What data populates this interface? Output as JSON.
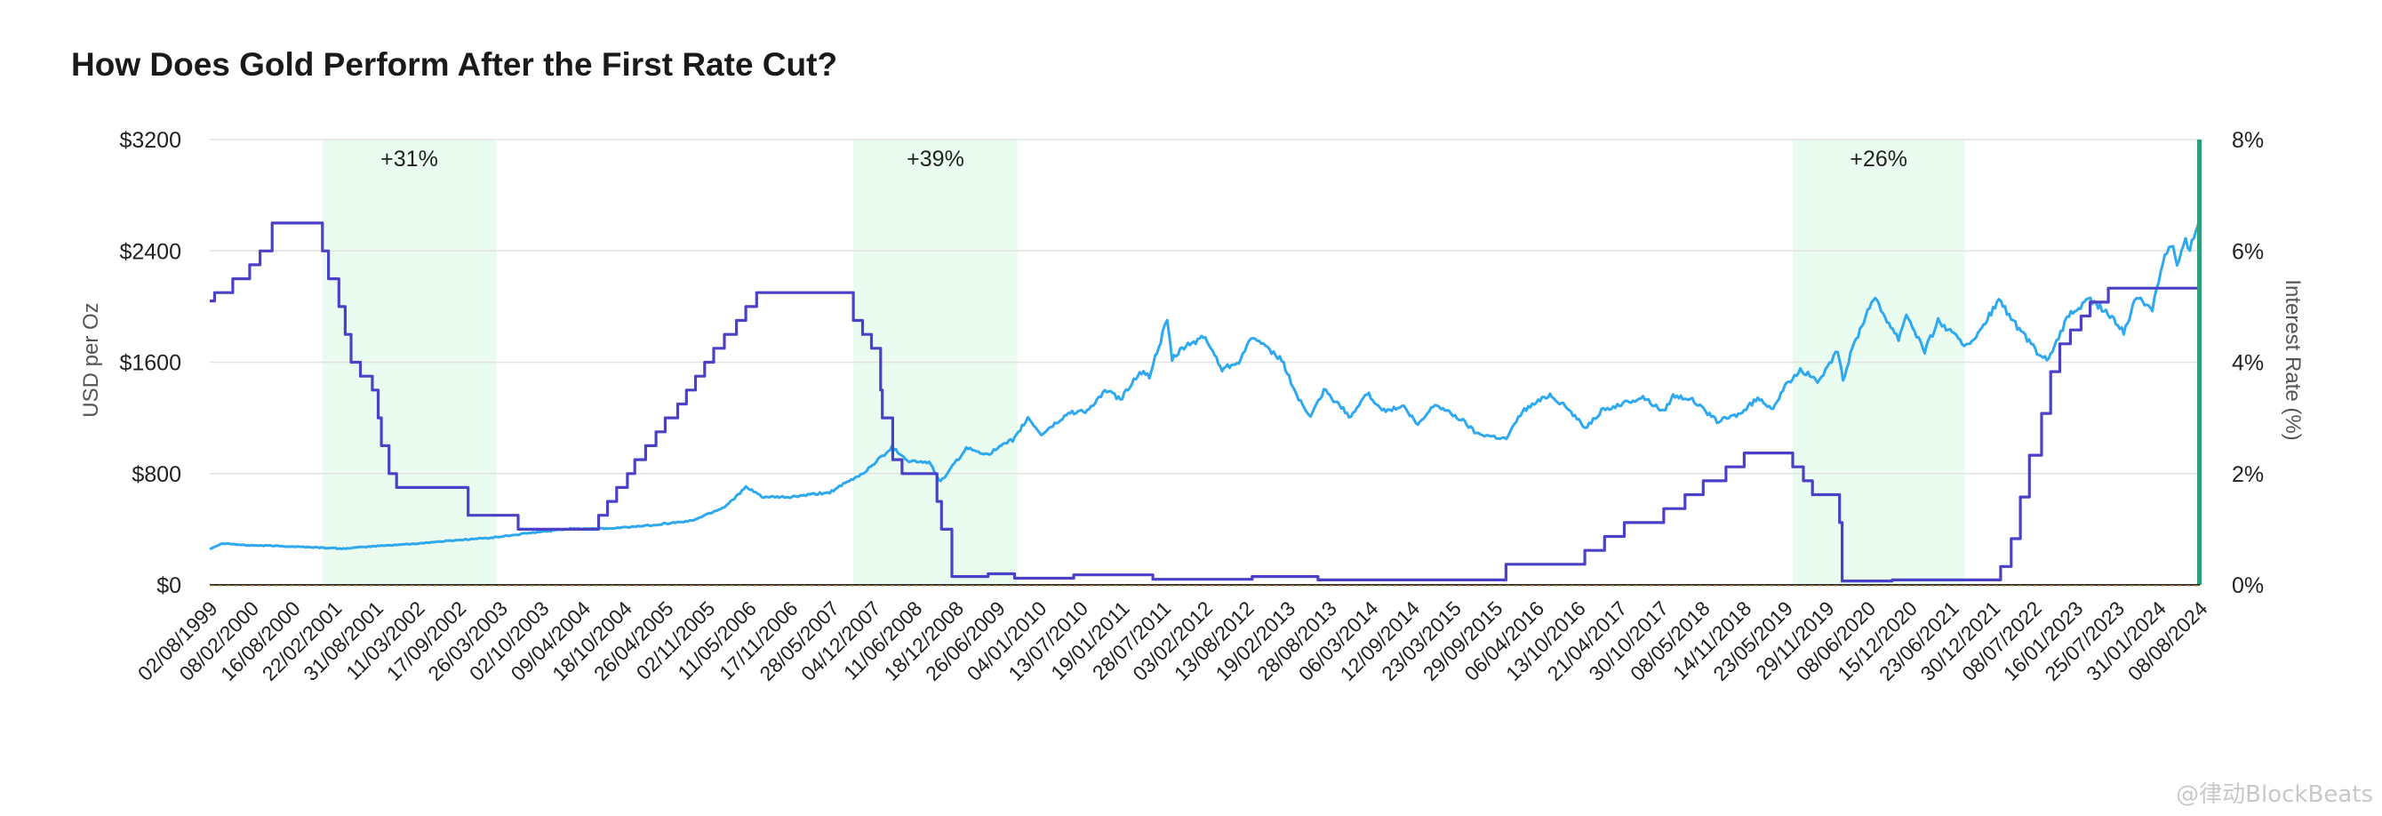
{
  "chart_data": {
    "type": "line",
    "title": "How Does Gold Perform After the First Rate Cut?",
    "ylabel": "USD per Oz",
    "y2label": "Interest Rate (%)",
    "ylim": [
      0,
      3200
    ],
    "y2lim": [
      0,
      8
    ],
    "yticks": [
      "$0",
      "$800",
      "$1600",
      "$2400",
      "$3200"
    ],
    "y2ticks": [
      "0%",
      "2%",
      "4%",
      "6%",
      "8%"
    ],
    "x_range": [
      "1999-08-02",
      "2024-09-20"
    ],
    "xticks": [
      "02/08/1999",
      "08/02/2000",
      "16/08/2000",
      "22/02/2001",
      "31/08/2001",
      "11/03/2002",
      "17/09/2002",
      "26/03/2003",
      "02/10/2003",
      "09/04/2004",
      "18/10/2004",
      "26/04/2005",
      "02/11/2005",
      "11/05/2006",
      "17/11/2006",
      "28/05/2007",
      "04/12/2007",
      "11/06/2008",
      "18/12/2008",
      "26/06/2009",
      "04/01/2010",
      "13/07/2010",
      "19/01/2011",
      "28/07/2011",
      "03/02/2012",
      "13/08/2012",
      "19/02/2013",
      "28/08/2013",
      "06/03/2014",
      "12/09/2014",
      "23/03/2015",
      "29/09/2015",
      "06/04/2016",
      "13/10/2016",
      "21/04/2017",
      "30/10/2017",
      "08/05/2018",
      "14/11/2018",
      "23/05/2019",
      "29/11/2019",
      "08/06/2020",
      "15/12/2020",
      "23/06/2021",
      "30/12/2021",
      "08/07/2022",
      "16/01/2023",
      "25/07/2023",
      "31/01/2024",
      "08/08/2024"
    ],
    "shaded_regions": [
      {
        "start": "2001-01-03",
        "end": "2003-03-15",
        "label": "+31%"
      },
      {
        "start": "2007-09-18",
        "end": "2009-10-15",
        "label": "+39%"
      },
      {
        "start": "2019-07-31",
        "end": "2021-10-01",
        "label": "+26%"
      }
    ],
    "marker_date": "2024-09-18",
    "series": [
      {
        "name": "",
        "axis": "left",
        "color": "#2ea8ef",
        "points": [
          [
            "1999-08-02",
            260
          ],
          [
            "1999-10-01",
            300
          ],
          [
            "2000-01-15",
            285
          ],
          [
            "2000-06-01",
            280
          ],
          [
            "2000-12-01",
            270
          ],
          [
            "2001-04-01",
            260
          ],
          [
            "2001-09-15",
            280
          ],
          [
            "2002-03-01",
            295
          ],
          [
            "2002-09-01",
            320
          ],
          [
            "2003-03-01",
            340
          ],
          [
            "2003-09-01",
            375
          ],
          [
            "2004-03-01",
            405
          ],
          [
            "2004-09-01",
            405
          ],
          [
            "2005-03-01",
            430
          ],
          [
            "2005-09-01",
            460
          ],
          [
            "2006-02-01",
            560
          ],
          [
            "2006-05-10",
            700
          ],
          [
            "2006-08-01",
            630
          ],
          [
            "2006-12-01",
            630
          ],
          [
            "2007-06-01",
            665
          ],
          [
            "2007-11-01",
            800
          ],
          [
            "2008-03-15",
            990
          ],
          [
            "2008-06-01",
            890
          ],
          [
            "2008-09-01",
            880
          ],
          [
            "2008-10-25",
            740
          ],
          [
            "2009-02-20",
            980
          ],
          [
            "2009-06-01",
            940
          ],
          [
            "2009-10-01",
            1050
          ],
          [
            "2009-12-01",
            1200
          ],
          [
            "2010-02-01",
            1080
          ],
          [
            "2010-06-15",
            1240
          ],
          [
            "2010-09-01",
            1250
          ],
          [
            "2010-12-01",
            1400
          ],
          [
            "2011-02-01",
            1330
          ],
          [
            "2011-05-01",
            1530
          ],
          [
            "2011-06-15",
            1500
          ],
          [
            "2011-08-15",
            1800
          ],
          [
            "2011-09-05",
            1895
          ],
          [
            "2011-09-28",
            1620
          ],
          [
            "2011-12-01",
            1720
          ],
          [
            "2012-02-28",
            1780
          ],
          [
            "2012-05-15",
            1550
          ],
          [
            "2012-08-01",
            1610
          ],
          [
            "2012-10-05",
            1790
          ],
          [
            "2012-12-01",
            1700
          ],
          [
            "2013-02-15",
            1620
          ],
          [
            "2013-04-15",
            1390
          ],
          [
            "2013-06-28",
            1200
          ],
          [
            "2013-08-28",
            1400
          ],
          [
            "2013-12-31",
            1205
          ],
          [
            "2014-03-15",
            1380
          ],
          [
            "2014-06-01",
            1250
          ],
          [
            "2014-09-01",
            1280
          ],
          [
            "2014-11-05",
            1145
          ],
          [
            "2015-01-22",
            1300
          ],
          [
            "2015-06-01",
            1180
          ],
          [
            "2015-08-01",
            1090
          ],
          [
            "2015-12-17",
            1050
          ],
          [
            "2016-03-01",
            1250
          ],
          [
            "2016-07-06",
            1370
          ],
          [
            "2016-10-01",
            1260
          ],
          [
            "2016-12-15",
            1130
          ],
          [
            "2017-03-01",
            1250
          ],
          [
            "2017-09-08",
            1350
          ],
          [
            "2017-12-12",
            1245
          ],
          [
            "2018-01-25",
            1360
          ],
          [
            "2018-04-15",
            1340
          ],
          [
            "2018-08-16",
            1175
          ],
          [
            "2018-12-01",
            1230
          ],
          [
            "2019-02-20",
            1340
          ],
          [
            "2019-05-01",
            1270
          ],
          [
            "2019-06-25",
            1420
          ],
          [
            "2019-09-04",
            1550
          ],
          [
            "2019-12-01",
            1460
          ],
          [
            "2020-02-24",
            1680
          ],
          [
            "2020-03-19",
            1470
          ],
          [
            "2020-05-01",
            1700
          ],
          [
            "2020-08-06",
            2070
          ],
          [
            "2020-11-30",
            1770
          ],
          [
            "2021-01-05",
            1950
          ],
          [
            "2021-03-31",
            1680
          ],
          [
            "2021-06-01",
            1900
          ],
          [
            "2021-09-29",
            1725
          ],
          [
            "2021-12-01",
            1790
          ],
          [
            "2022-03-08",
            2050
          ],
          [
            "2022-06-01",
            1850
          ],
          [
            "2022-09-28",
            1620
          ],
          [
            "2022-11-01",
            1640
          ],
          [
            "2023-01-25",
            1940
          ],
          [
            "2023-05-04",
            2050
          ],
          [
            "2023-07-15",
            1960
          ],
          [
            "2023-10-05",
            1820
          ],
          [
            "2023-12-04",
            2070
          ],
          [
            "2024-02-14",
            1990
          ],
          [
            "2024-04-12",
            2390
          ],
          [
            "2024-05-20",
            2440
          ],
          [
            "2024-06-07",
            2290
          ],
          [
            "2024-07-17",
            2470
          ],
          [
            "2024-08-05",
            2400
          ],
          [
            "2024-09-20",
            2660
          ]
        ]
      },
      {
        "name": "",
        "axis": "right",
        "color": "#4b41c8",
        "step": true,
        "points": [
          [
            "1999-08-02",
            5.1
          ],
          [
            "1999-08-24",
            5.25
          ],
          [
            "1999-11-16",
            5.5
          ],
          [
            "2000-02-02",
            5.75
          ],
          [
            "2000-03-21",
            6.0
          ],
          [
            "2000-05-16",
            6.5
          ],
          [
            "2001-01-03",
            6.0
          ],
          [
            "2001-01-31",
            5.5
          ],
          [
            "2001-03-20",
            5.0
          ],
          [
            "2001-04-18",
            4.5
          ],
          [
            "2001-05-15",
            4.0
          ],
          [
            "2001-06-27",
            3.75
          ],
          [
            "2001-08-21",
            3.5
          ],
          [
            "2001-09-17",
            3.0
          ],
          [
            "2001-10-02",
            2.5
          ],
          [
            "2001-11-06",
            2.0
          ],
          [
            "2001-12-11",
            1.75
          ],
          [
            "2002-11-06",
            1.25
          ],
          [
            "2003-06-25",
            1.0
          ],
          [
            "2004-06-30",
            1.25
          ],
          [
            "2004-08-10",
            1.5
          ],
          [
            "2004-09-21",
            1.75
          ],
          [
            "2004-11-10",
            2.0
          ],
          [
            "2004-12-14",
            2.25
          ],
          [
            "2005-02-02",
            2.5
          ],
          [
            "2005-03-22",
            2.75
          ],
          [
            "2005-05-03",
            3.0
          ],
          [
            "2005-06-30",
            3.25
          ],
          [
            "2005-08-09",
            3.5
          ],
          [
            "2005-09-20",
            3.75
          ],
          [
            "2005-11-01",
            4.0
          ],
          [
            "2005-12-13",
            4.25
          ],
          [
            "2006-01-31",
            4.5
          ],
          [
            "2006-03-28",
            4.75
          ],
          [
            "2006-05-10",
            5.0
          ],
          [
            "2006-06-29",
            5.25
          ],
          [
            "2007-09-18",
            4.75
          ],
          [
            "2007-10-31",
            4.5
          ],
          [
            "2007-12-11",
            4.25
          ],
          [
            "2008-01-22",
            3.5
          ],
          [
            "2008-01-30",
            3.0
          ],
          [
            "2008-03-18",
            2.25
          ],
          [
            "2008-04-30",
            2.0
          ],
          [
            "2008-10-08",
            1.5
          ],
          [
            "2008-10-29",
            1.0
          ],
          [
            "2008-12-16",
            0.15
          ],
          [
            "2009-06-01",
            0.2
          ],
          [
            "2009-10-01",
            0.12
          ],
          [
            "2010-07-01",
            0.18
          ],
          [
            "2011-07-01",
            0.1
          ],
          [
            "2012-10-01",
            0.15
          ],
          [
            "2013-08-01",
            0.09
          ],
          [
            "2015-12-16",
            0.37
          ],
          [
            "2016-12-14",
            0.62
          ],
          [
            "2017-03-15",
            0.87
          ],
          [
            "2017-06-14",
            1.12
          ],
          [
            "2017-12-13",
            1.37
          ],
          [
            "2018-03-21",
            1.62
          ],
          [
            "2018-06-13",
            1.87
          ],
          [
            "2018-09-26",
            2.12
          ],
          [
            "2018-12-19",
            2.37
          ],
          [
            "2019-07-31",
            2.12
          ],
          [
            "2019-09-18",
            1.87
          ],
          [
            "2019-10-30",
            1.62
          ],
          [
            "2020-03-03",
            1.12
          ],
          [
            "2020-03-15",
            0.07
          ],
          [
            "2020-11-01",
            0.09
          ],
          [
            "2022-03-16",
            0.33
          ],
          [
            "2022-05-04",
            0.83
          ],
          [
            "2022-06-15",
            1.58
          ],
          [
            "2022-07-27",
            2.33
          ],
          [
            "2022-09-21",
            3.08
          ],
          [
            "2022-11-02",
            3.83
          ],
          [
            "2022-12-14",
            4.33
          ],
          [
            "2023-02-01",
            4.58
          ],
          [
            "2023-03-22",
            4.83
          ],
          [
            "2023-05-03",
            5.08
          ],
          [
            "2023-07-26",
            5.33
          ],
          [
            "2024-09-18",
            5.13
          ],
          [
            "2024-09-20",
            5.13
          ]
        ]
      }
    ]
  },
  "watermark": "@律动BlockBeats"
}
